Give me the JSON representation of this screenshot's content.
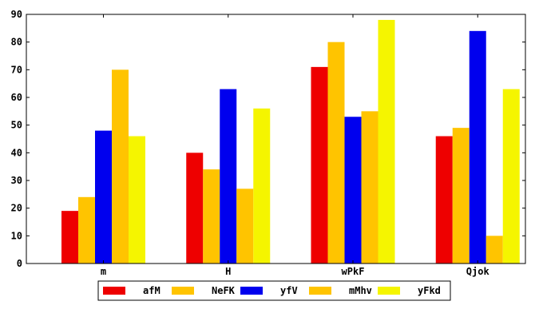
{
  "chart_data": {
    "type": "bar",
    "categories": [
      "m",
      "H",
      "wPkF",
      "Qjok"
    ],
    "series": [
      {
        "name": "afM",
        "color": "#ee0000",
        "values": [
          19,
          40,
          71,
          46
        ]
      },
      {
        "name": "NeFK",
        "color": "#ffc400",
        "values": [
          24,
          34,
          80,
          49
        ]
      },
      {
        "name": "yfV",
        "color": "#0000ee",
        "values": [
          48,
          63,
          53,
          84
        ]
      },
      {
        "name": "mMhv",
        "color": "#ffc400",
        "values": [
          70,
          27,
          55,
          10
        ]
      },
      {
        "name": "yFkd",
        "color": "#f5f500",
        "values": [
          46,
          56,
          88,
          63
        ]
      }
    ],
    "ylim": [
      0,
      90
    ],
    "yticks": [
      0,
      10,
      20,
      30,
      40,
      50,
      60,
      70,
      80,
      90
    ],
    "title": "",
    "xlabel": "",
    "ylabel": "",
    "grid": false,
    "legend_position": "bottom-center"
  }
}
